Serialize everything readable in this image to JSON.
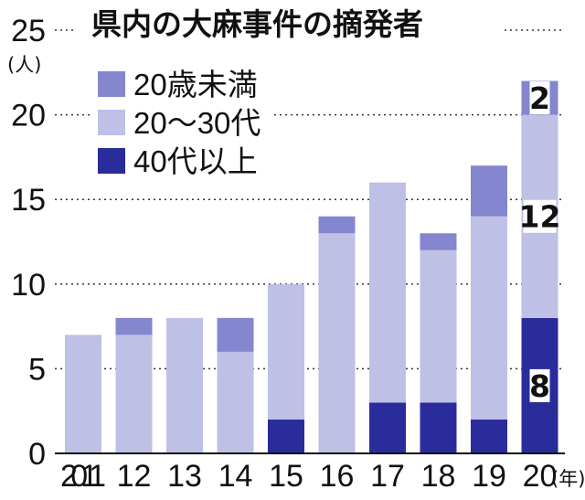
{
  "chart_data": {
    "type": "bar",
    "stacked": true,
    "title": "県内の大麻事件の摘発者",
    "ylabel": "(人)",
    "xlabel": "(年)",
    "ylim": [
      0,
      25
    ],
    "yticks": [
      0,
      5,
      10,
      15,
      20,
      25
    ],
    "categories": [
      "2011",
      "12",
      "13",
      "14",
      "15",
      "16",
      "17",
      "18",
      "19",
      "20"
    ],
    "series": [
      {
        "name": "40代以上",
        "color": "#2a2c9c",
        "values": [
          0,
          0,
          0,
          0,
          2,
          0,
          3,
          3,
          2,
          8
        ]
      },
      {
        "name": "20〜30代",
        "color": "#bfc0e6",
        "values": [
          7,
          7,
          8,
          6,
          8,
          13,
          13,
          9,
          12,
          12
        ]
      },
      {
        "name": "20歳未満",
        "color": "#8486cf",
        "values": [
          0,
          1,
          0,
          2,
          0,
          1,
          0,
          1,
          3,
          2
        ]
      }
    ],
    "legend_order": [
      "20歳未満",
      "20〜30代",
      "40代以上"
    ],
    "data_labels": [
      {
        "category": "20",
        "series": "40代以上",
        "text": "8"
      },
      {
        "category": "20",
        "series": "20〜30代",
        "text": "12"
      },
      {
        "category": "20",
        "series": "20歳未満",
        "text": "2"
      }
    ],
    "legend_position": "top-left"
  }
}
